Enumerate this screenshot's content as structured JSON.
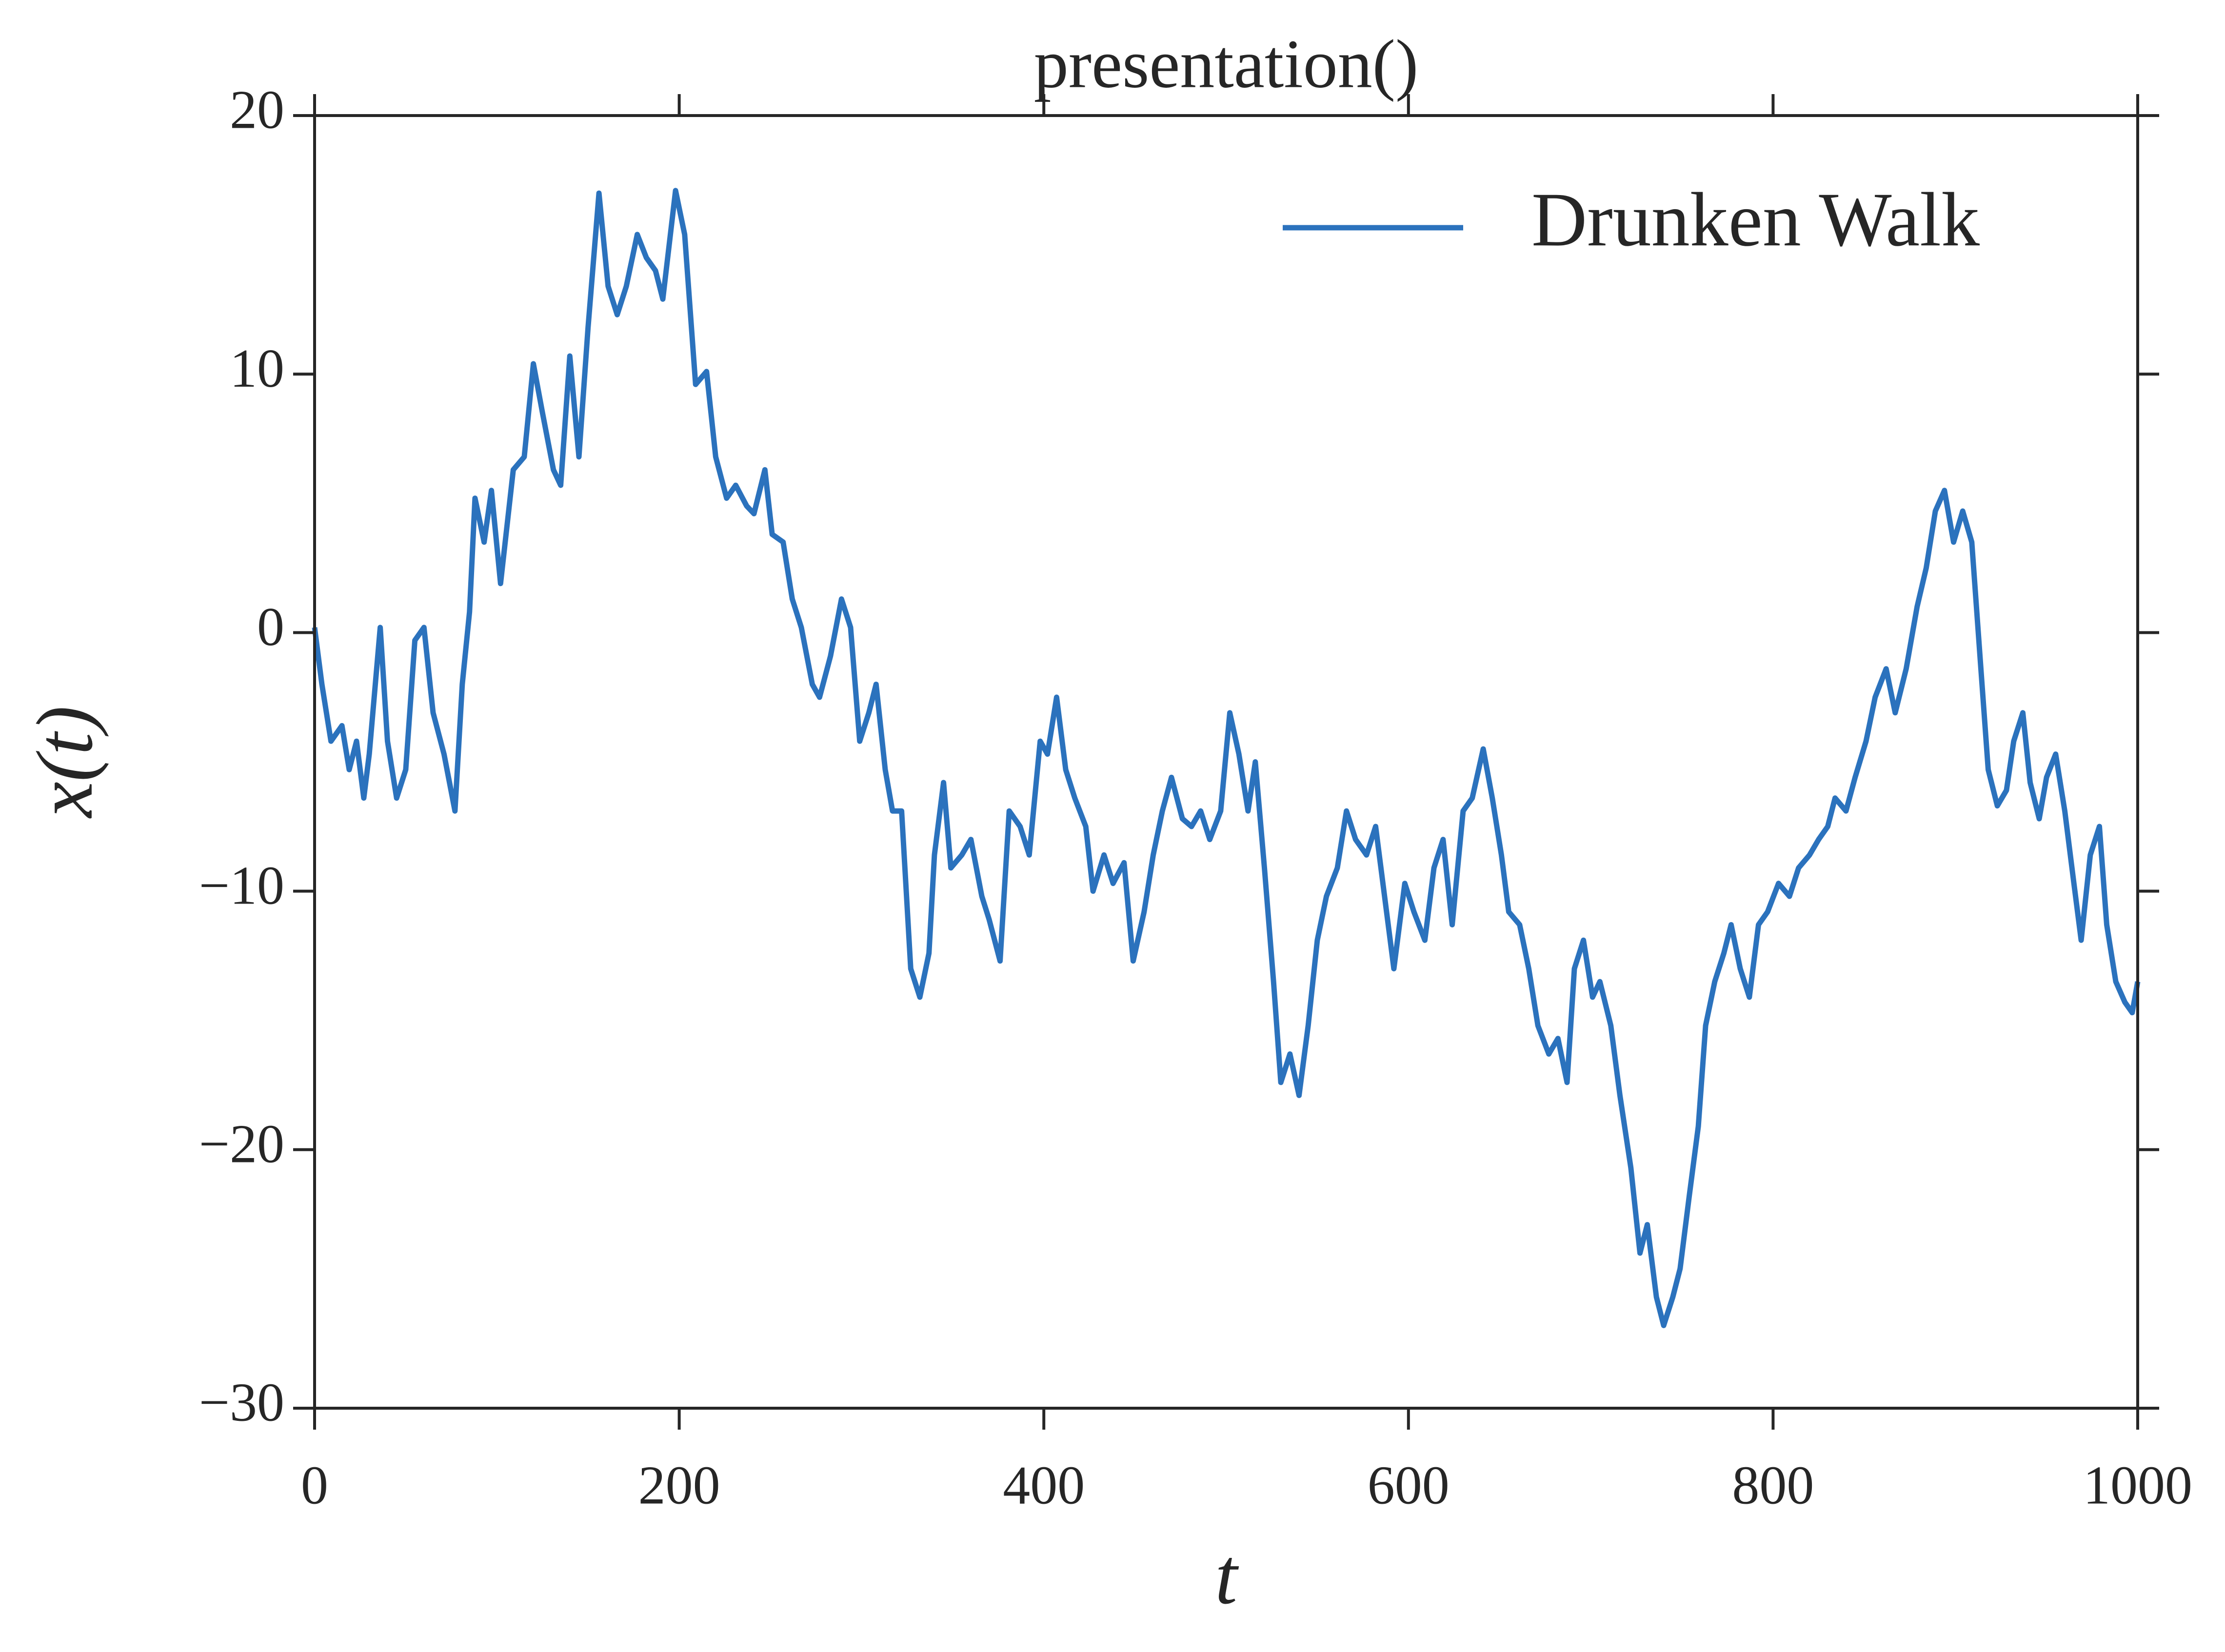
{
  "chart_data": {
    "type": "line",
    "title": "presentation()",
    "xlabel": "t",
    "ylabel": "x(t)",
    "x": [
      0,
      4,
      9,
      15,
      19,
      23,
      27,
      30,
      36,
      40,
      45,
      50,
      55,
      60,
      65,
      71,
      77,
      81,
      85,
      88,
      93,
      97,
      102,
      109,
      115,
      120,
      125,
      131,
      135,
      140,
      145,
      150,
      156,
      161,
      166,
      171,
      177,
      182,
      187,
      191,
      198,
      203,
      209,
      215,
      220,
      226,
      231,
      237,
      241,
      247,
      251,
      257,
      262,
      267,
      273,
      277,
      283,
      289,
      294,
      299,
      304,
      308,
      313,
      317,
      322,
      327,
      332,
      337,
      340,
      345,
      349,
      355,
      360,
      366,
      370,
      376,
      381,
      387,
      392,
      398,
      402,
      407,
      412,
      417,
      423,
      427,
      433,
      438,
      444,
      449,
      455,
      460,
      465,
      470,
      476,
      481,
      486,
      491,
      497,
      502,
      507,
      512,
      516,
      521,
      526,
      530,
      535,
      540,
      545,
      550,
      555,
      561,
      566,
      571,
      577,
      582,
      588,
      592,
      598,
      603,
      609,
      614,
      619,
      624,
      630,
      635,
      641,
      646,
      651,
      655,
      661,
      666,
      671,
      677,
      682,
      687,
      691,
      696,
      701,
      705,
      711,
      716,
      722,
      727,
      731,
      736,
      740,
      745,
      749,
      754,
      759,
      763,
      768,
      773,
      777,
      782,
      787,
      792,
      797,
      803,
      809,
      814,
      820,
      825,
      830,
      834,
      840,
      845,
      851,
      856,
      862,
      867,
      873,
      879,
      884,
      889,
      894,
      899,
      904,
      909,
      914,
      918,
      923,
      928,
      932,
      937,
      941,
      946,
      950,
      955,
      960,
      965,
      969,
      974,
      979,
      983,
      988,
      993,
      997,
      1000
    ],
    "series": [
      {
        "name": "Drunken Walk",
        "color": "#2b72bd",
        "values": [
          0.2,
          -2,
          -4.2,
          -3.6,
          -5.3,
          -4.2,
          -6.4,
          -4.7,
          0.2,
          -4.2,
          -6.4,
          -5.3,
          -0.3,
          0.2,
          -3.1,
          -4.7,
          -6.9,
          -2,
          0.8,
          5.2,
          3.5,
          5.5,
          1.9,
          6.3,
          6.8,
          10.4,
          8.5,
          6.3,
          5.7,
          10.7,
          6.8,
          11.8,
          17,
          13.4,
          12.3,
          13.4,
          15.4,
          14.5,
          14,
          12.9,
          17.1,
          15.4,
          9.6,
          10.1,
          6.8,
          5.2,
          5.7,
          4.9,
          4.6,
          6.3,
          3.8,
          3.5,
          1.3,
          0.2,
          -2,
          -2.5,
          -0.9,
          1.3,
          0.2,
          -4.2,
          -3.1,
          -2,
          -5.3,
          -6.9,
          -6.9,
          -13,
          -14.1,
          -12.4,
          -8.6,
          -5.8,
          -9.1,
          -8.6,
          -8,
          -10.2,
          -11.1,
          -12.7,
          -6.9,
          -7.5,
          -8.6,
          -4.2,
          -4.7,
          -2.5,
          -5.3,
          -6.4,
          -7.5,
          -10,
          -8.6,
          -9.7,
          -8.9,
          -12.7,
          -10.8,
          -8.6,
          -6.9,
          -5.6,
          -7.2,
          -7.5,
          -6.9,
          -8,
          -6.9,
          -3.1,
          -4.7,
          -6.9,
          -5,
          -9.1,
          -13.5,
          -17.4,
          -16.3,
          -17.9,
          -15.2,
          -11.9,
          -10.2,
          -9.1,
          -6.9,
          -8,
          -8.6,
          -7.5,
          -10.8,
          -13,
          -9.7,
          -10.8,
          -11.9,
          -9.1,
          -8,
          -11.3,
          -6.9,
          -6.4,
          -4.5,
          -6.4,
          -8.6,
          -10.8,
          -11.3,
          -13,
          -15.2,
          -16.3,
          -15.7,
          -17.4,
          -13,
          -11.9,
          -14.1,
          -13.5,
          -15.2,
          -17.9,
          -20.7,
          -24,
          -22.9,
          -25.7,
          -26.8,
          -25.7,
          -24.6,
          -21.8,
          -19.1,
          -15.2,
          -13.5,
          -12.4,
          -11.3,
          -13,
          -14.1,
          -11.3,
          -10.8,
          -9.7,
          -10.2,
          -9.1,
          -8.6,
          -8,
          -7.5,
          -6.4,
          -6.9,
          -5.6,
          -4.2,
          -2.5,
          -1.4,
          -3.1,
          -1.4,
          1,
          2.5,
          4.7,
          5.5,
          3.5,
          4.7,
          3.5,
          -1.4,
          -5.3,
          -6.7,
          -6.1,
          -4.2,
          -3.1,
          -5.8,
          -7.2,
          -5.6,
          -4.7,
          -6.9,
          -9.7,
          -11.9,
          -8.6,
          -7.5,
          -11.3,
          -13.5,
          -14.3,
          -14.7,
          -13.5
        ]
      }
    ],
    "xlim": [
      0,
      1000
    ],
    "ylim": [
      -30,
      20
    ],
    "xticks": [
      0,
      200,
      400,
      600,
      800,
      1000
    ],
    "yticks": [
      {
        "value": -30,
        "label": "−30"
      },
      {
        "value": -20,
        "label": "−20"
      },
      {
        "value": -10,
        "label": "−10"
      },
      0,
      10,
      20
    ],
    "grid": false,
    "legend": "upper right"
  }
}
